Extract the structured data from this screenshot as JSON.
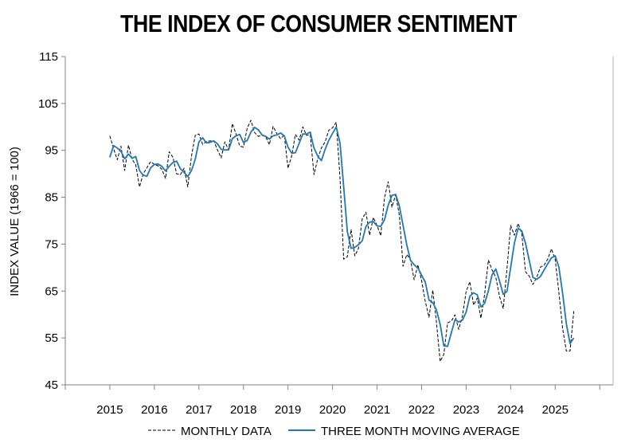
{
  "chart_data": {
    "type": "line",
    "title": "THE INDEX OF CONSUMER SENTIMENT",
    "xlabel": "",
    "ylabel": "INDEX VALUE (1966 = 100)",
    "xlim": [
      2014.0,
      2026.3
    ],
    "ylim": [
      45,
      115
    ],
    "yticks": [
      45,
      55,
      65,
      75,
      85,
      95,
      105,
      115
    ],
    "xticks": [
      2015,
      2016,
      2017,
      2018,
      2019,
      2020,
      2021,
      2022,
      2023,
      2024,
      2025
    ],
    "grid": false,
    "legend_position": "bottom-center",
    "colors": {
      "monthly": "#000000",
      "moving_average": "#1f78b4"
    },
    "series": [
      {
        "name": "MONTHLY DATA",
        "style": "dashed",
        "x": [
          2015.0,
          2015.083,
          2015.167,
          2015.25,
          2015.333,
          2015.417,
          2015.5,
          2015.583,
          2015.667,
          2015.75,
          2015.833,
          2015.917,
          2016.0,
          2016.083,
          2016.167,
          2016.25,
          2016.333,
          2016.417,
          2016.5,
          2016.583,
          2016.667,
          2016.75,
          2016.833,
          2016.917,
          2017.0,
          2017.083,
          2017.167,
          2017.25,
          2017.333,
          2017.417,
          2017.5,
          2017.583,
          2017.667,
          2017.75,
          2017.833,
          2017.917,
          2018.0,
          2018.083,
          2018.167,
          2018.25,
          2018.333,
          2018.417,
          2018.5,
          2018.583,
          2018.667,
          2018.75,
          2018.833,
          2018.917,
          2019.0,
          2019.083,
          2019.167,
          2019.25,
          2019.333,
          2019.417,
          2019.5,
          2019.583,
          2019.667,
          2019.75,
          2019.833,
          2019.917,
          2020.0,
          2020.083,
          2020.167,
          2020.25,
          2020.333,
          2020.417,
          2020.5,
          2020.583,
          2020.667,
          2020.75,
          2020.833,
          2020.917,
          2021.0,
          2021.083,
          2021.167,
          2021.25,
          2021.333,
          2021.417,
          2021.5,
          2021.583,
          2021.667,
          2021.75,
          2021.833,
          2021.917,
          2022.0,
          2022.083,
          2022.167,
          2022.25,
          2022.333,
          2022.417,
          2022.5,
          2022.583,
          2022.667,
          2022.75,
          2022.833,
          2022.917,
          2023.0,
          2023.083,
          2023.167,
          2023.25,
          2023.333,
          2023.417,
          2023.5,
          2023.583,
          2023.667,
          2023.75,
          2023.833,
          2023.917,
          2024.0,
          2024.083,
          2024.167,
          2024.25,
          2024.333,
          2024.417,
          2024.5,
          2024.583,
          2024.667,
          2024.75,
          2024.833,
          2024.917,
          2025.0,
          2025.083,
          2025.167,
          2025.25,
          2025.333,
          2025.417
        ],
        "values": [
          98.1,
          95.4,
          93.0,
          95.9,
          90.7,
          96.1,
          93.1,
          91.9,
          87.2,
          90.0,
          91.3,
          92.6,
          92.0,
          91.7,
          91.0,
          89.0,
          94.7,
          93.5,
          90.0,
          89.8,
          91.2,
          87.2,
          93.8,
          98.2,
          98.5,
          96.3,
          96.9,
          97.0,
          97.1,
          95.1,
          93.4,
          96.8,
          95.1,
          100.7,
          98.5,
          95.9,
          95.7,
          99.7,
          101.4,
          98.8,
          98.0,
          98.2,
          97.9,
          96.2,
          100.1,
          98.6,
          97.5,
          98.3,
          91.2,
          93.8,
          98.4,
          97.2,
          100.0,
          98.2,
          98.4,
          89.8,
          93.2,
          95.5,
          96.8,
          99.3,
          99.8,
          101.0,
          89.1,
          71.8,
          72.3,
          78.1,
          72.5,
          74.1,
          80.4,
          81.8,
          76.9,
          80.7,
          79.0,
          76.8,
          84.9,
          88.3,
          82.9,
          85.5,
          81.2,
          70.3,
          72.8,
          71.7,
          67.4,
          70.6,
          67.2,
          62.8,
          59.4,
          65.2,
          58.4,
          50.0,
          51.5,
          58.2,
          58.6,
          59.9,
          56.8,
          59.7,
          64.9,
          67.0,
          62.0,
          63.5,
          59.2,
          64.4,
          71.6,
          69.5,
          67.9,
          63.8,
          61.3,
          69.7,
          79.0,
          76.9,
          79.4,
          77.2,
          69.1,
          68.2,
          66.4,
          67.9,
          70.1,
          70.5,
          71.8,
          74.0,
          71.7,
          64.7,
          57.0,
          52.2,
          52.2,
          60.7
        ]
      },
      {
        "name": "THREE MONTH MOVING AVERAGE",
        "style": "solid",
        "x": [
          2015.0,
          2015.083,
          2015.167,
          2015.25,
          2015.333,
          2015.417,
          2015.5,
          2015.583,
          2015.667,
          2015.75,
          2015.833,
          2015.917,
          2016.0,
          2016.083,
          2016.167,
          2016.25,
          2016.333,
          2016.417,
          2016.5,
          2016.583,
          2016.667,
          2016.75,
          2016.833,
          2016.917,
          2017.0,
          2017.083,
          2017.167,
          2017.25,
          2017.333,
          2017.417,
          2017.5,
          2017.583,
          2017.667,
          2017.75,
          2017.833,
          2017.917,
          2018.0,
          2018.083,
          2018.167,
          2018.25,
          2018.333,
          2018.417,
          2018.5,
          2018.583,
          2018.667,
          2018.75,
          2018.833,
          2018.917,
          2019.0,
          2019.083,
          2019.167,
          2019.25,
          2019.333,
          2019.417,
          2019.5,
          2019.583,
          2019.667,
          2019.75,
          2019.833,
          2019.917,
          2020.0,
          2020.083,
          2020.167,
          2020.25,
          2020.333,
          2020.417,
          2020.5,
          2020.583,
          2020.667,
          2020.75,
          2020.833,
          2020.917,
          2021.0,
          2021.083,
          2021.167,
          2021.25,
          2021.333,
          2021.417,
          2021.5,
          2021.583,
          2021.667,
          2021.75,
          2021.833,
          2021.917,
          2022.0,
          2022.083,
          2022.167,
          2022.25,
          2022.333,
          2022.417,
          2022.5,
          2022.583,
          2022.667,
          2022.75,
          2022.833,
          2022.917,
          2023.0,
          2023.083,
          2023.167,
          2023.25,
          2023.333,
          2023.417,
          2023.5,
          2023.583,
          2023.667,
          2023.75,
          2023.833,
          2023.917,
          2024.0,
          2024.083,
          2024.167,
          2024.25,
          2024.333,
          2024.417,
          2024.5,
          2024.583,
          2024.667,
          2024.75,
          2024.833,
          2024.917,
          2025.0,
          2025.083,
          2025.167,
          2025.25,
          2025.333,
          2025.417
        ],
        "values": [
          93.5,
          96.0,
          95.5,
          94.8,
          93.2,
          94.2,
          93.3,
          93.7,
          90.7,
          89.7,
          89.5,
          91.3,
          92.0,
          92.1,
          91.6,
          90.6,
          91.6,
          92.4,
          92.7,
          91.1,
          90.3,
          89.4,
          90.7,
          93.1,
          96.8,
          97.7,
          96.6,
          96.7,
          97.0,
          96.4,
          95.2,
          95.1,
          95.1,
          97.5,
          98.1,
          98.4,
          96.7,
          97.1,
          98.9,
          99.9,
          99.4,
          98.3,
          98.0,
          97.4,
          98.1,
          98.3,
          98.7,
          98.1,
          95.7,
          94.4,
          94.5,
          96.5,
          98.5,
          98.5,
          98.9,
          95.5,
          93.8,
          92.8,
          95.2,
          97.2,
          98.6,
          100.0,
          96.6,
          87.3,
          77.7,
          74.1,
          74.3,
          74.9,
          75.7,
          78.8,
          79.7,
          79.8,
          78.9,
          78.8,
          80.2,
          83.3,
          85.4,
          85.6,
          83.2,
          79.0,
          74.8,
          71.6,
          70.6,
          69.9,
          68.4,
          66.9,
          63.1,
          62.5,
          61.0,
          57.9,
          53.3,
          53.2,
          56.1,
          58.9,
          58.4,
          58.8,
          60.5,
          63.9,
          64.6,
          64.2,
          61.6,
          62.4,
          65.1,
          68.5,
          69.7,
          67.1,
          64.3,
          64.9,
          70.0,
          75.2,
          78.4,
          77.8,
          75.2,
          71.5,
          67.9,
          67.5,
          68.1,
          69.5,
          70.8,
          72.1,
          72.5,
          70.1,
          64.5,
          58.0,
          53.8,
          55.0
        ]
      }
    ]
  }
}
